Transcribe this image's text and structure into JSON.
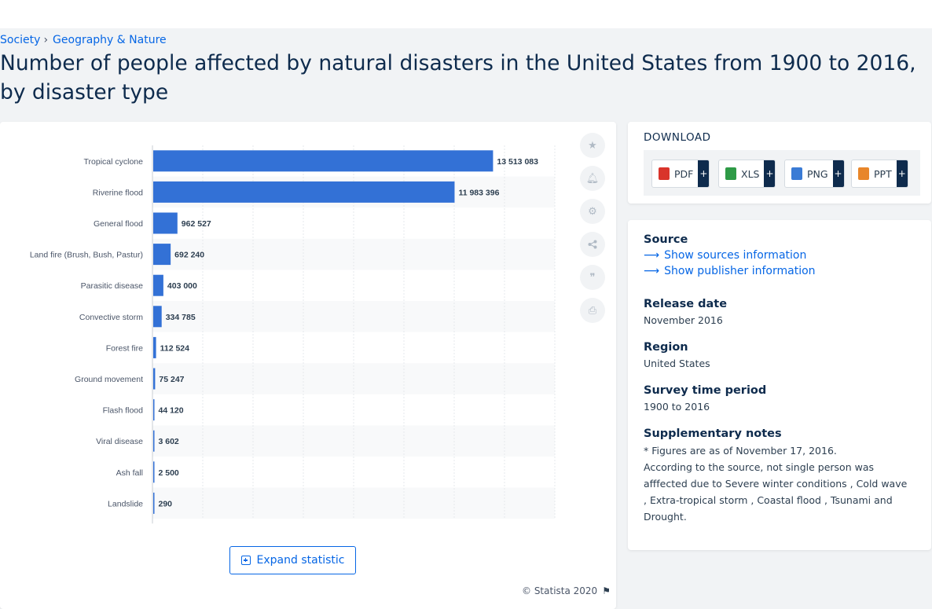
{
  "breadcrumb": {
    "items": [
      "Society",
      "Geography & Nature"
    ]
  },
  "page": {
    "title": "Number of people affected by natural disasters in the United States from 1900 to 2016, by disaster type"
  },
  "chart_data": {
    "type": "bar",
    "orientation": "horizontal",
    "categories": [
      "Tropical cyclone",
      "Riverine flood",
      "General flood",
      "Land fire (Brush, Bush, Pastur)",
      "Parasitic disease",
      "Convective storm",
      "Forest fire",
      "Ground movement",
      "Flash flood",
      "Viral disease",
      "Ash fall",
      "Landslide"
    ],
    "values": [
      13513083,
      11983396,
      962527,
      692240,
      403000,
      334785,
      112524,
      75247,
      44120,
      3602,
      2500,
      290
    ],
    "value_labels": [
      "13 513 083",
      "11 983 396",
      "962 527",
      "692 240",
      "403 000",
      "334 785",
      "112 524",
      "75 247",
      "44 120",
      "3 602",
      "2 500",
      "290"
    ],
    "xlim": [
      0,
      16000000
    ],
    "grid": true,
    "bar_color": "#3371d6"
  },
  "toolbar": {
    "icons": [
      "star-icon",
      "bell-icon",
      "gear-icon",
      "share-icon",
      "quote-icon",
      "print-icon"
    ]
  },
  "expand": {
    "label": "Expand statistic"
  },
  "copyright": "© Statista 2020",
  "download": {
    "title": "DOWNLOAD",
    "formats": [
      {
        "label": "PDF",
        "color": "#d9342b"
      },
      {
        "label": "XLS",
        "color": "#2e9a46"
      },
      {
        "label": "PNG",
        "color": "#3a7bd5"
      },
      {
        "label": "PPT",
        "color": "#e8862a"
      }
    ],
    "plus": "+"
  },
  "meta": {
    "source_heading": "Source",
    "show_sources": "Show sources information",
    "show_publisher": "Show publisher information",
    "release_heading": "Release date",
    "release_value": "November 2016",
    "region_heading": "Region",
    "region_value": "United States",
    "survey_heading": "Survey time period",
    "survey_value": "1900 to 2016",
    "notes_heading": "Supplementary notes",
    "notes_line1": "* Figures are as of November 17, 2016.",
    "notes_line2": "According to the source, not single person was afffected due to Severe winter conditions , Cold wave , Extra-tropical storm , Coastal flood , Tsunami and Drought."
  }
}
